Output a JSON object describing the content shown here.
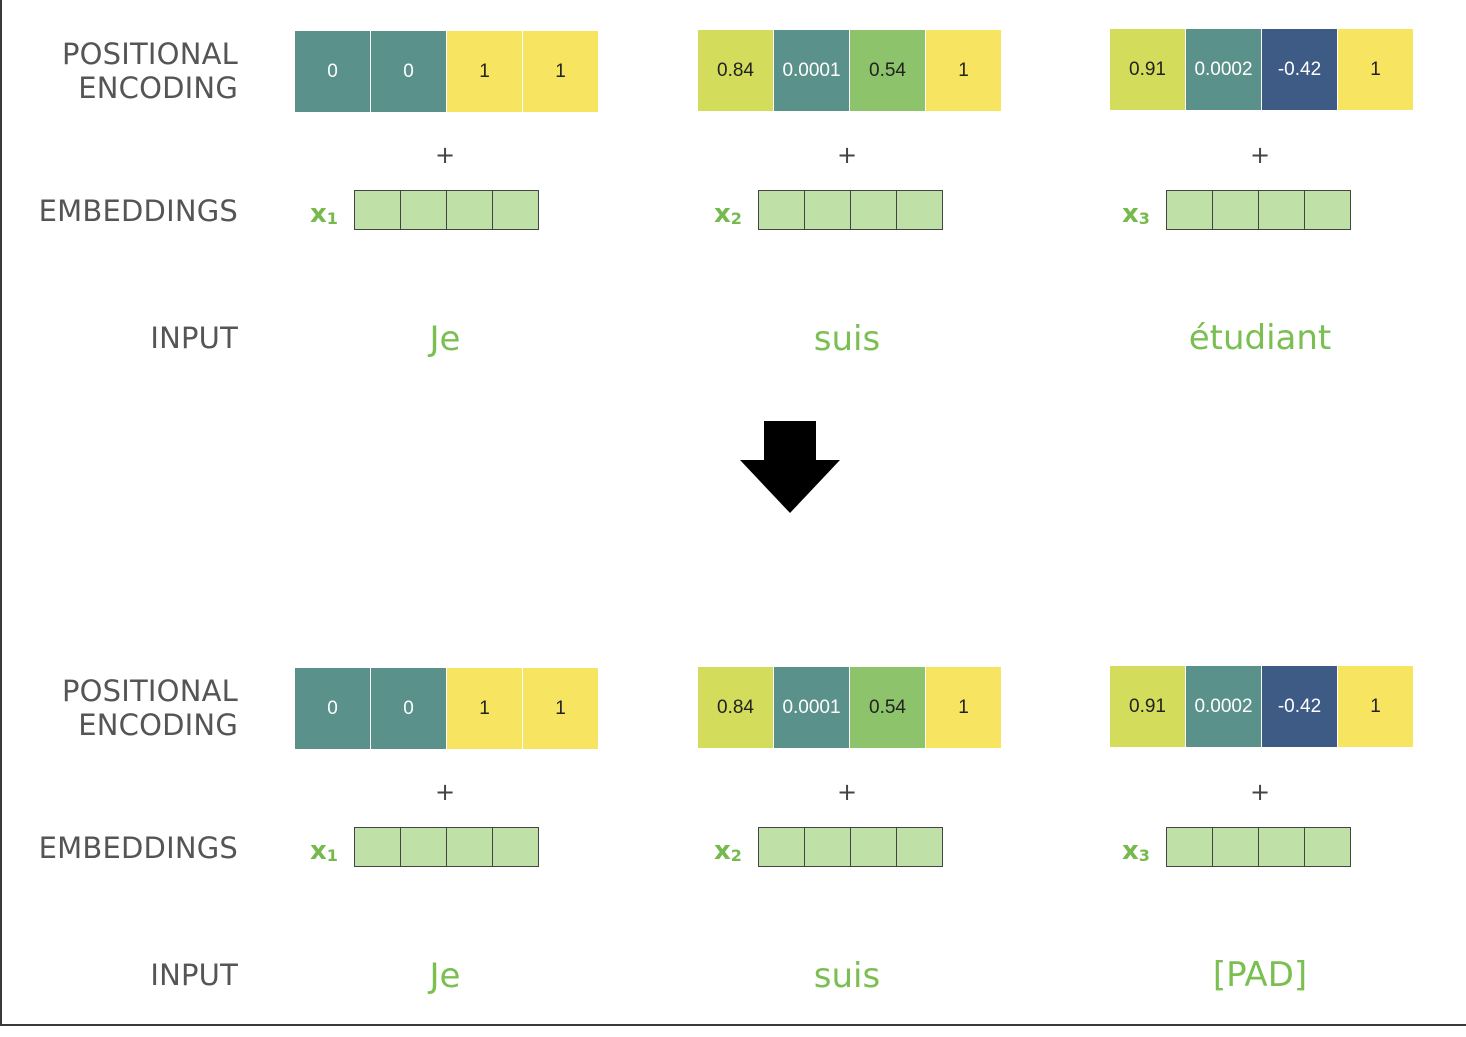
{
  "labels": {
    "positional_encoding": "POSITIONAL\nENCODING",
    "embeddings": "EMBEDDINGS",
    "input": "INPUT"
  },
  "plus_sign": "+",
  "embedding_cells": 4,
  "colors": {
    "teal": "#5a918a",
    "yellow": "#f7e460",
    "lime": "#d3dd5b",
    "green": "#8dc36a",
    "navy": "#3e5b86",
    "embedding_fill": "#bfe1a7",
    "token_text": "#7bbf52",
    "label_text": "#555555"
  },
  "panels": [
    {
      "columns": [
        {
          "pe": [
            {
              "value": "0",
              "color": "#5a918a",
              "text_color": "#ffffff"
            },
            {
              "value": "0",
              "color": "#5a918a",
              "text_color": "#ffffff"
            },
            {
              "value": "1",
              "color": "#f7e460",
              "text_color": "#222222"
            },
            {
              "value": "1",
              "color": "#f7e460",
              "text_color": "#222222"
            }
          ],
          "x_var": "x",
          "x_sub": "1",
          "token": "Je"
        },
        {
          "pe": [
            {
              "value": "0.84",
              "color": "#d3dd5b",
              "text_color": "#222222"
            },
            {
              "value": "0.0001",
              "color": "#5a918a",
              "text_color": "#ffffff"
            },
            {
              "value": "0.54",
              "color": "#8dc36a",
              "text_color": "#222222"
            },
            {
              "value": "1",
              "color": "#f7e460",
              "text_color": "#222222"
            }
          ],
          "x_var": "x",
          "x_sub": "2",
          "token": "suis"
        },
        {
          "pe": [
            {
              "value": "0.91",
              "color": "#d3dd5b",
              "text_color": "#222222"
            },
            {
              "value": "0.0002",
              "color": "#5a918a",
              "text_color": "#ffffff"
            },
            {
              "value": "-0.42",
              "color": "#3e5b86",
              "text_color": "#ffffff"
            },
            {
              "value": "1",
              "color": "#f7e460",
              "text_color": "#222222"
            }
          ],
          "x_var": "x",
          "x_sub": "3",
          "token": "étudiant"
        }
      ]
    },
    {
      "columns": [
        {
          "pe": [
            {
              "value": "0",
              "color": "#5a918a",
              "text_color": "#ffffff"
            },
            {
              "value": "0",
              "color": "#5a918a",
              "text_color": "#ffffff"
            },
            {
              "value": "1",
              "color": "#f7e460",
              "text_color": "#222222"
            },
            {
              "value": "1",
              "color": "#f7e460",
              "text_color": "#222222"
            }
          ],
          "x_var": "x",
          "x_sub": "1",
          "token": "Je"
        },
        {
          "pe": [
            {
              "value": "0.84",
              "color": "#d3dd5b",
              "text_color": "#222222"
            },
            {
              "value": "0.0001",
              "color": "#5a918a",
              "text_color": "#ffffff"
            },
            {
              "value": "0.54",
              "color": "#8dc36a",
              "text_color": "#222222"
            },
            {
              "value": "1",
              "color": "#f7e460",
              "text_color": "#222222"
            }
          ],
          "x_var": "x",
          "x_sub": "2",
          "token": "suis"
        },
        {
          "pe": [
            {
              "value": "0.91",
              "color": "#d3dd5b",
              "text_color": "#222222"
            },
            {
              "value": "0.0002",
              "color": "#5a918a",
              "text_color": "#ffffff"
            },
            {
              "value": "-0.42",
              "color": "#3e5b86",
              "text_color": "#ffffff"
            },
            {
              "value": "1",
              "color": "#f7e460",
              "text_color": "#222222"
            }
          ],
          "x_var": "x",
          "x_sub": "3",
          "token": "[PAD]"
        }
      ]
    }
  ],
  "arrow": {
    "icon": "down-arrow-icon",
    "color": "#000000"
  }
}
